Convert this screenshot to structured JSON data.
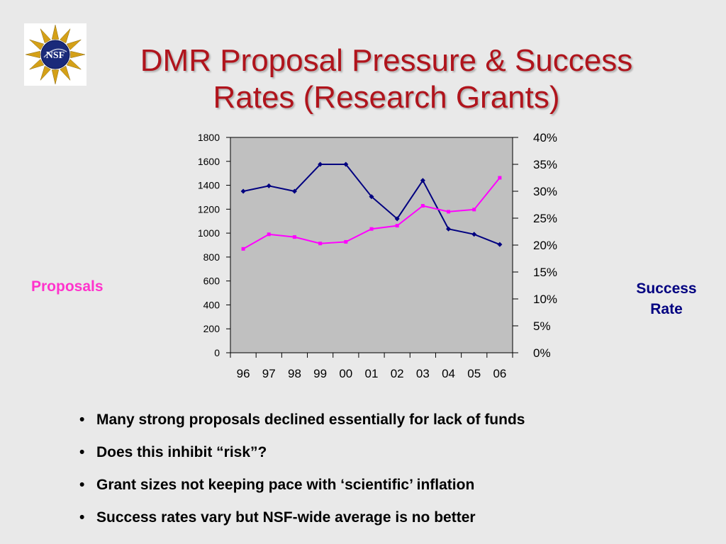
{
  "slide": {
    "title_line1": "DMR Proposal Pressure & Success",
    "title_line2": "Rates (Research Grants)",
    "logo_text": "NSF"
  },
  "labels": {
    "left_axis": "Proposals",
    "right_axis_line1": "Success",
    "right_axis_line2": "Rate"
  },
  "bullets": [
    "Many strong proposals declined essentially for lack of funds",
    "Does this inhibit “risk”?",
    "Grant sizes not keeping pace with ‘scientific’ inflation",
    "Success rates vary but NSF-wide average is no better"
  ],
  "chart_data": {
    "type": "line",
    "categories": [
      "96",
      "97",
      "98",
      "99",
      "00",
      "01",
      "02",
      "03",
      "04",
      "05",
      "06"
    ],
    "series": [
      {
        "name": "Proposals",
        "axis": "left",
        "color": "#000080",
        "values": [
          1350,
          1395,
          1350,
          1575,
          1575,
          1305,
          1120,
          1440,
          1035,
          990,
          905
        ]
      },
      {
        "name": "Success Rate",
        "axis": "right",
        "color": "#ff00ff",
        "values": [
          19.3,
          22.0,
          21.5,
          20.3,
          20.6,
          23.0,
          23.6,
          27.3,
          26.2,
          26.6,
          32.5
        ]
      }
    ],
    "left_axis": {
      "min": 0,
      "max": 1800,
      "ticks": [
        0,
        200,
        400,
        600,
        800,
        1000,
        1200,
        1400,
        1600,
        1800
      ]
    },
    "right_axis": {
      "min": 0,
      "max": 40,
      "ticks": [
        "0%",
        "5%",
        "10%",
        "15%",
        "20%",
        "25%",
        "30%",
        "35%",
        "40%"
      ]
    },
    "plot_background": "#c0c0c0",
    "gridlines": false
  }
}
